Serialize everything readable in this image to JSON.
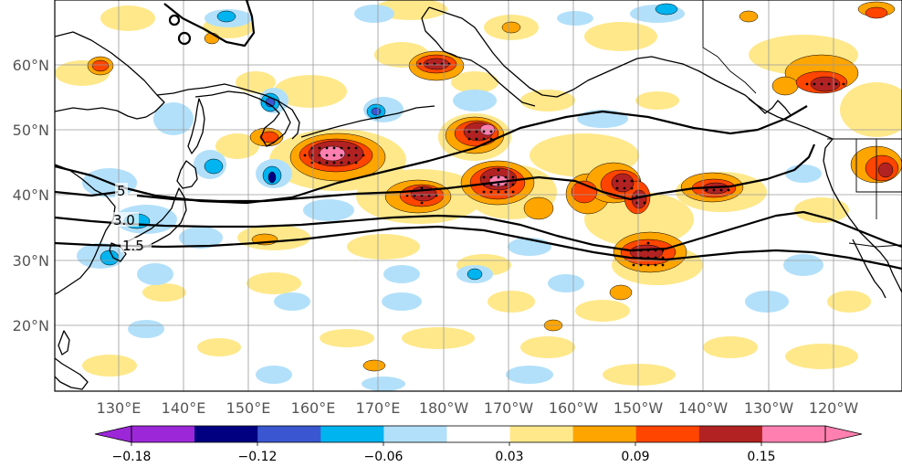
{
  "map": {
    "lat_labels": [
      "60°N",
      "50°N",
      "40°N",
      "30°N",
      "20°N"
    ],
    "lon_labels": [
      "130°E",
      "140°E",
      "150°E",
      "160°E",
      "170°E",
      "180°W",
      "170°W",
      "160°W",
      "150°W",
      "140°W",
      "130°W",
      "120°W"
    ],
    "contour_labels": [
      "5",
      "3.0",
      "1.5"
    ],
    "colors": {
      "land_outline": "#000000",
      "grid": "#9a9a9a",
      "contour": "#000000"
    }
  },
  "colorbar": {
    "labels": [
      "−0.18",
      "−0.12",
      "−0.06",
      "0.03",
      "0.09",
      "0.15"
    ],
    "bins": [
      "#9c27d8",
      "#000080",
      "#3a56d0",
      "#00b4f0",
      "#b2e0fa",
      "#ffffff",
      "#ffe88a",
      "#ffa500",
      "#ff4500",
      "#b22222",
      "#ff80b0"
    ],
    "under_color": "#9c27d8",
    "over_color": "#ff80b0"
  }
}
